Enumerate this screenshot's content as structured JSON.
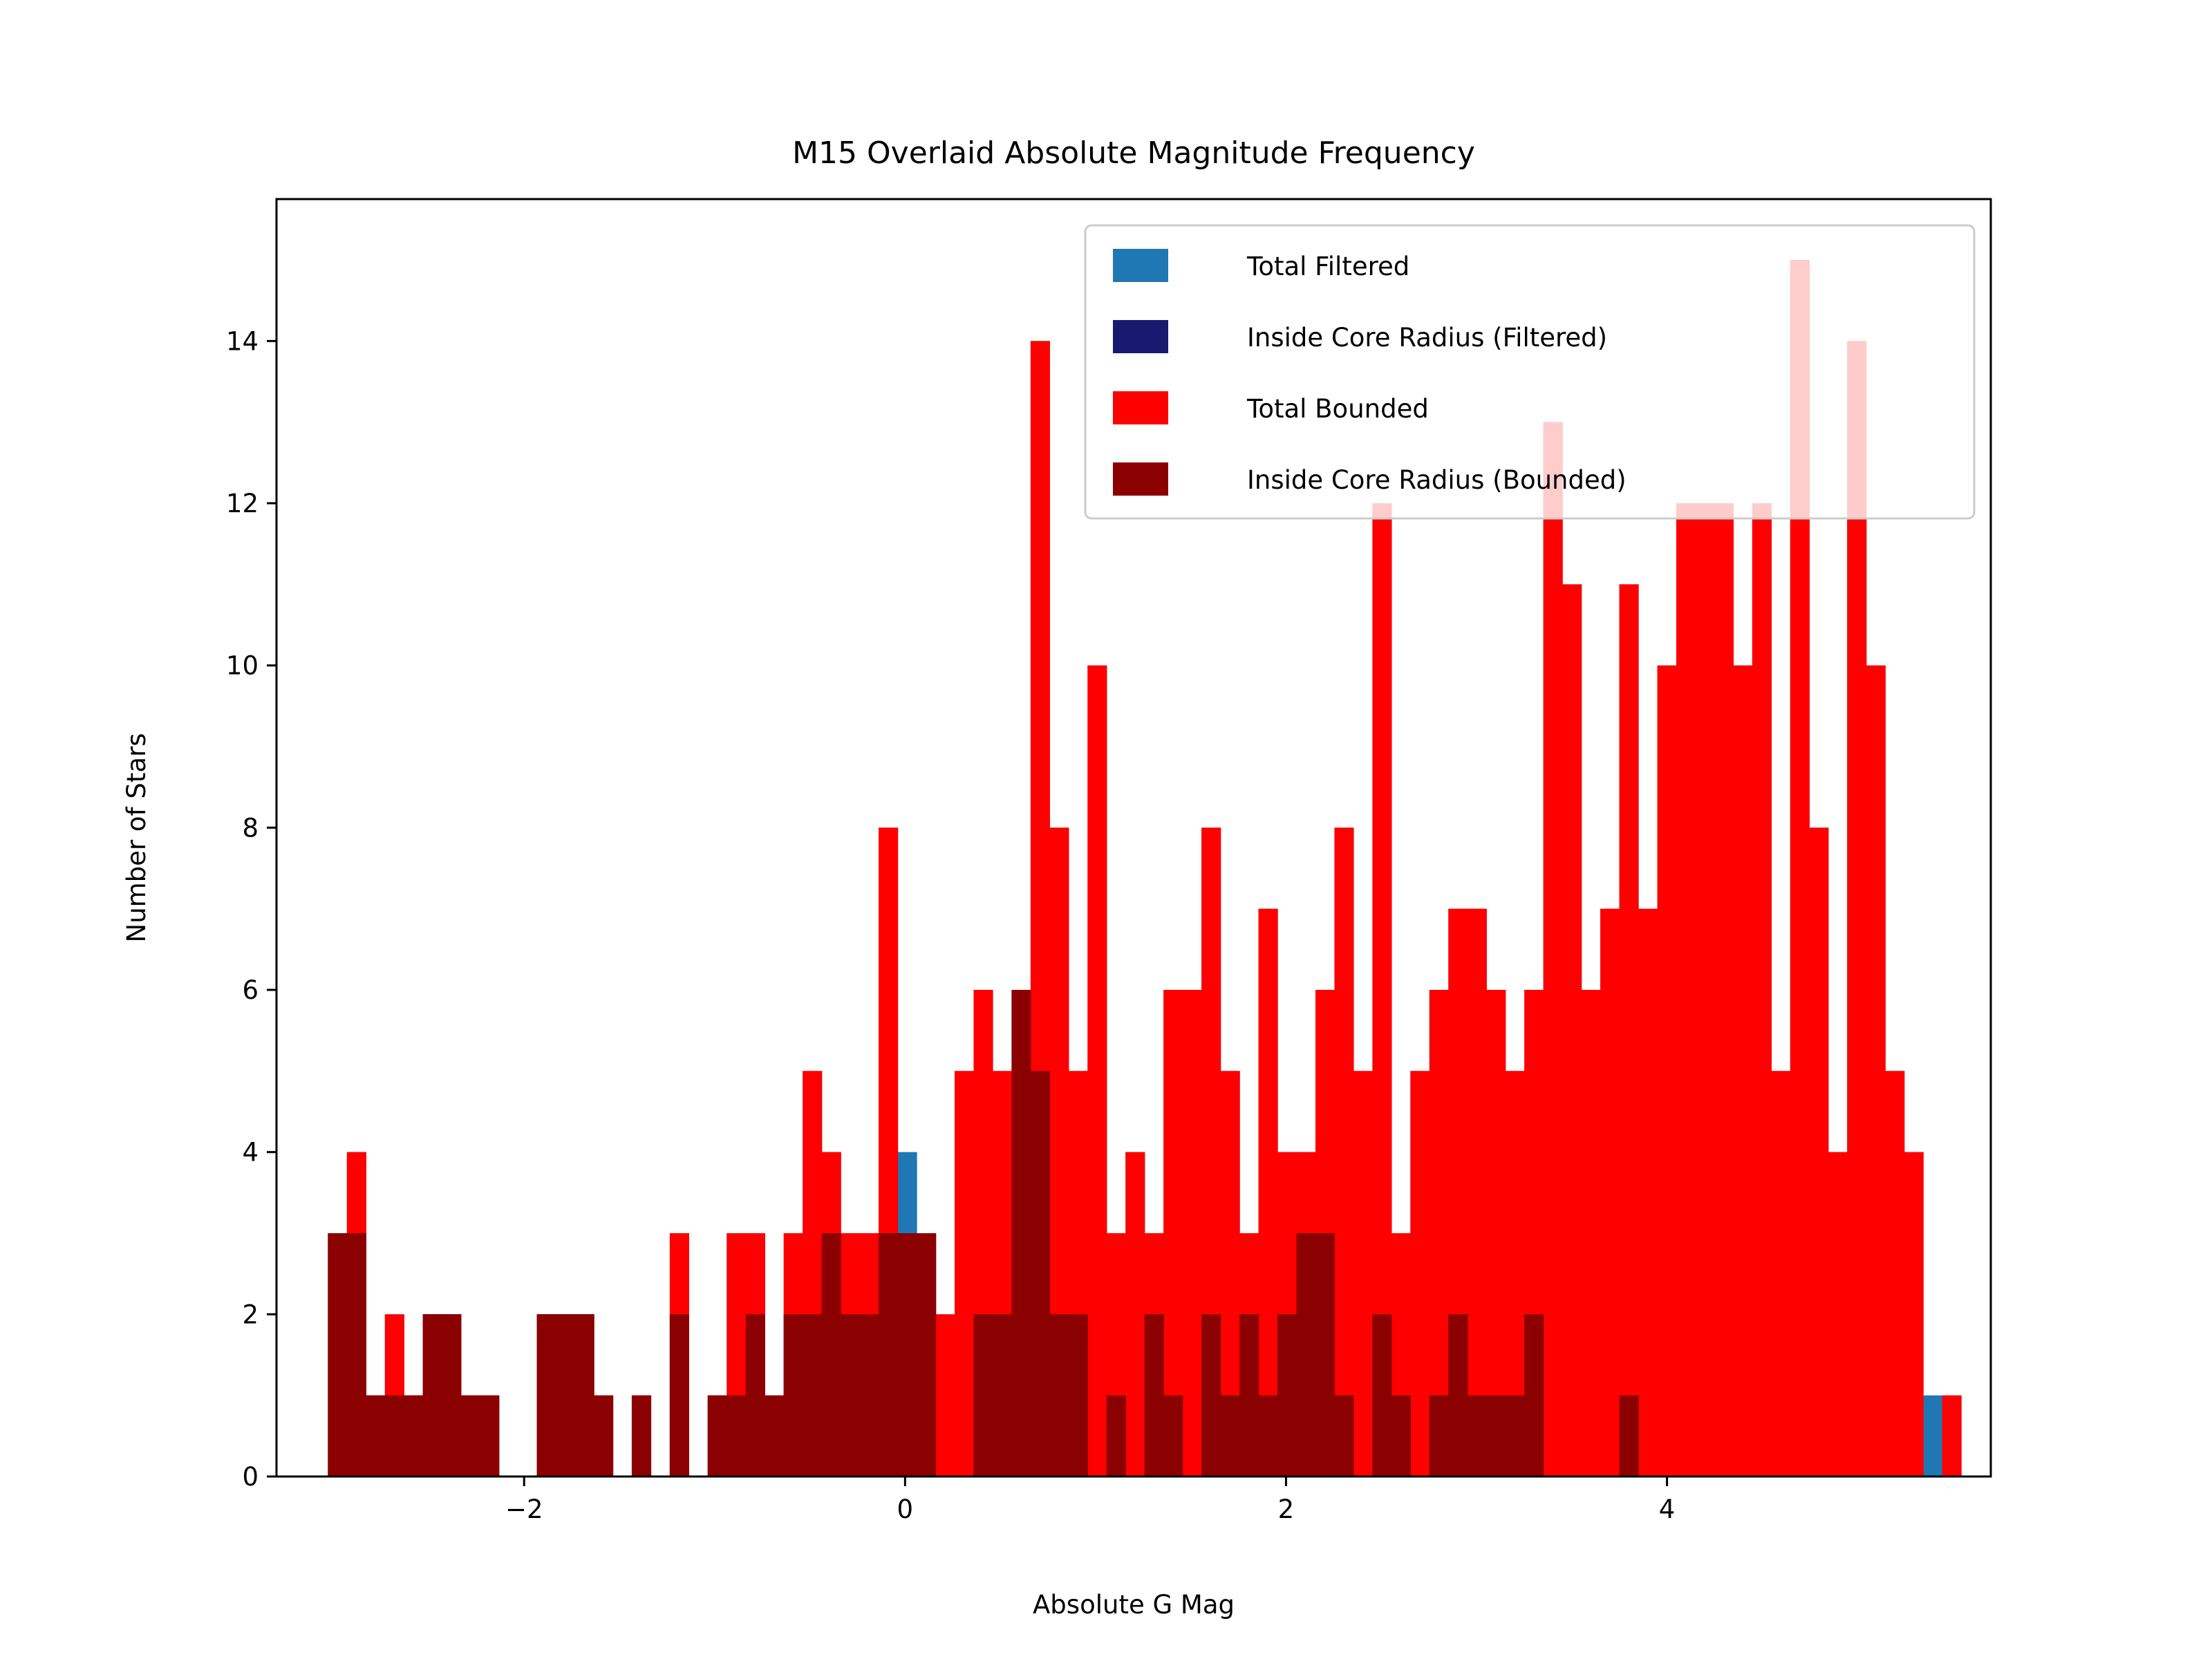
{
  "chart_data": {
    "type": "bar",
    "title": "M15 Overlaid Absolute Magnitude Frequency",
    "xlabel": "Absolute G Mag",
    "ylabel": "Number of Stars",
    "xlim": [
      -3.3,
      5.7
    ],
    "ylim": [
      0,
      15.75
    ],
    "x_ticks": [
      -2,
      0,
      2,
      4
    ],
    "x_tick_labels": [
      "−2",
      "0",
      "2",
      "4"
    ],
    "y_ticks": [
      0,
      2,
      4,
      6,
      8,
      10,
      12,
      14
    ],
    "y_tick_labels": [
      "0",
      "2",
      "4",
      "6",
      "8",
      "10",
      "12",
      "14"
    ],
    "grid": false,
    "legend_position": "top-right",
    "bin_start": -3.03,
    "bin_width": 0.0997,
    "series": [
      {
        "name": "Total Filtered",
        "color": "#1f77b4",
        "z_order": 1,
        "values": [
          3,
          4,
          1,
          2,
          1,
          2,
          2,
          1,
          1,
          0,
          0,
          2,
          2,
          2,
          1,
          0,
          1,
          0,
          3,
          0,
          1,
          3,
          3,
          0,
          3,
          5,
          4,
          3,
          3,
          8,
          4,
          3,
          2,
          5,
          6,
          5,
          2,
          14,
          8,
          5,
          10,
          3,
          4,
          3,
          6,
          6,
          8,
          5,
          3,
          7,
          4,
          4,
          6,
          8,
          5,
          12,
          3,
          5,
          6,
          7,
          7,
          6,
          5,
          6,
          13,
          11,
          6,
          7,
          11,
          7,
          10,
          12,
          12,
          12,
          10,
          12,
          5,
          15,
          8,
          4,
          14,
          10,
          5,
          4,
          1,
          1
        ]
      },
      {
        "name": "Inside Core Radius (Filtered)",
        "color": "#191970",
        "z_order": 2,
        "values": [
          3,
          3,
          1,
          1,
          1,
          2,
          2,
          1,
          1,
          0,
          0,
          2,
          2,
          2,
          1,
          0,
          1,
          0,
          2,
          0,
          1,
          1,
          2,
          1,
          2,
          2,
          3,
          2,
          2,
          3,
          3,
          3,
          0,
          0,
          2,
          2,
          6,
          5,
          2,
          2,
          0,
          1,
          0,
          2,
          1,
          0,
          2,
          1,
          2,
          1,
          2,
          3,
          3,
          1,
          0,
          2,
          1,
          0,
          1,
          2,
          1,
          1,
          1,
          2,
          0,
          0,
          0,
          0,
          1,
          0,
          0,
          0,
          0,
          0,
          0,
          0,
          0,
          0,
          0,
          0,
          0,
          0,
          0,
          0,
          0,
          0
        ]
      },
      {
        "name": "Total Bounded",
        "color": "#ff0000",
        "z_order": 3,
        "values": [
          3,
          4,
          1,
          2,
          1,
          2,
          2,
          1,
          1,
          0,
          0,
          2,
          2,
          2,
          1,
          0,
          1,
          0,
          3,
          0,
          1,
          3,
          3,
          0,
          3,
          5,
          4,
          3,
          3,
          8,
          3,
          3,
          2,
          5,
          6,
          5,
          2,
          14,
          8,
          5,
          10,
          3,
          4,
          3,
          6,
          6,
          8,
          5,
          3,
          7,
          4,
          4,
          6,
          8,
          5,
          12,
          3,
          5,
          6,
          7,
          7,
          6,
          5,
          6,
          13,
          11,
          6,
          7,
          11,
          7,
          10,
          12,
          12,
          12,
          10,
          12,
          5,
          15,
          8,
          4,
          14,
          10,
          5,
          4,
          0,
          1
        ]
      },
      {
        "name": "Inside Core Radius (Bounded)",
        "color": "#8b0000",
        "z_order": 4,
        "values": [
          3,
          3,
          1,
          1,
          1,
          2,
          2,
          1,
          1,
          0,
          0,
          2,
          2,
          2,
          1,
          0,
          1,
          0,
          2,
          0,
          1,
          1,
          2,
          1,
          2,
          2,
          3,
          2,
          2,
          3,
          3,
          3,
          0,
          0,
          2,
          2,
          6,
          5,
          2,
          2,
          0,
          1,
          0,
          2,
          1,
          0,
          2,
          1,
          2,
          1,
          2,
          3,
          3,
          1,
          0,
          2,
          1,
          0,
          1,
          2,
          1,
          1,
          1,
          2,
          0,
          0,
          0,
          0,
          1,
          0,
          0,
          0,
          0,
          0,
          0,
          0,
          0,
          0,
          0,
          0,
          0,
          0,
          0,
          0,
          0,
          0
        ]
      }
    ]
  }
}
